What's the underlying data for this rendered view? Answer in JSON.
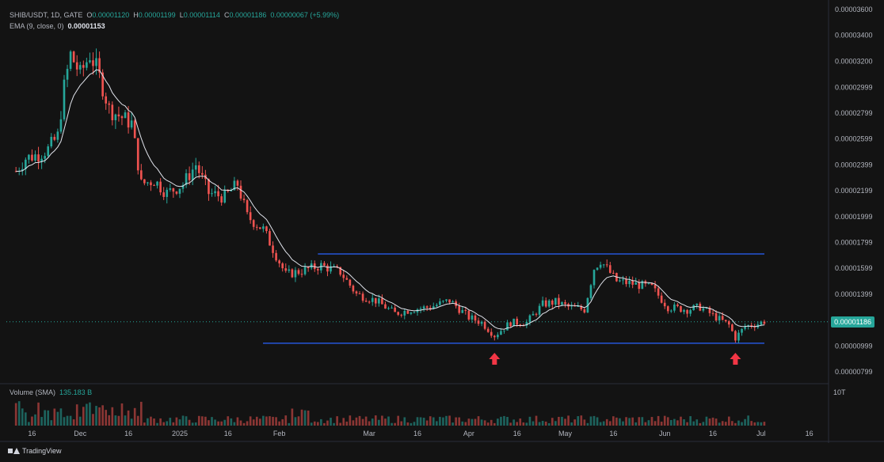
{
  "legend": {
    "symbol": "SHIB/USDT, 1D, GATE",
    "o_label": "O",
    "o_val": "0.00001120",
    "h_label": "H",
    "h_val": "0.00001199",
    "l_label": "L",
    "l_val": "0.00001114",
    "c_label": "C",
    "c_val": "0.00001186",
    "change": "0.00000067 (+5.99%)",
    "ema_label": "EMA (9, close, 0)",
    "ema_val": "0.00001153"
  },
  "volume": {
    "label": "Volume (SMA)",
    "value": "135.183 B",
    "axis_label": "10T"
  },
  "last_price_tag": "0.00001186",
  "footer": {
    "brand": "TradingView"
  },
  "colors": {
    "up": "#26a69a",
    "down": "#ef5350",
    "ema": "#e0e3eb",
    "channel": "#2962ff",
    "arrow": "#f23645",
    "last_line": "#26a69a"
  },
  "chart_data": {
    "type": "candlestick",
    "x_tick_labels": [
      "16",
      "Dec",
      "16",
      "2025",
      "16",
      "Feb",
      "Mar",
      "16",
      "Apr",
      "16",
      "May",
      "16",
      "Jun",
      "16",
      "Jul",
      "16"
    ],
    "y_tick_labels": [
      "0.00003600",
      "0.00003400",
      "0.00003200",
      "0.00002999",
      "0.00002799",
      "0.00002599",
      "0.00002399",
      "0.00002199",
      "0.00001999",
      "0.00001799",
      "0.00001599",
      "0.00001399",
      "0.00001199",
      "0.00000999",
      "0.00000799"
    ],
    "ylim": [
      7.5e-06,
      3.6e-05
    ],
    "channel": {
      "upper": 1.71e-05,
      "lower": 1.02e-05,
      "start_date": "2025-02-11",
      "end_date": "2025-07-12"
    },
    "markers": [
      {
        "type": "up-arrow",
        "date": "2025-04-09"
      },
      {
        "type": "up-arrow",
        "date": "2025-06-23"
      }
    ],
    "ema_series_name": "EMA (9, close, 0)",
    "closes": [
      [
        "2024-11-11",
        2.35e-05
      ],
      [
        "2024-11-14",
        2.45e-05
      ],
      [
        "2024-11-18",
        2.48e-05
      ],
      [
        "2024-11-21",
        2.52e-05
      ],
      [
        "2024-11-24",
        2.62e-05
      ],
      [
        "2024-11-26",
        3e-05
      ],
      [
        "2024-11-28",
        3.25e-05
      ],
      [
        "2024-12-01",
        3.1e-05
      ],
      [
        "2024-12-04",
        3.25e-05
      ],
      [
        "2024-12-06",
        3.15e-05
      ],
      [
        "2024-12-08",
        3e-05
      ],
      [
        "2024-12-10",
        2.83e-05
      ],
      [
        "2024-12-13",
        2.78e-05
      ],
      [
        "2024-12-17",
        2.72e-05
      ],
      [
        "2024-12-20",
        2.25e-05
      ],
      [
        "2024-12-24",
        2.28e-05
      ],
      [
        "2024-12-28",
        2.18e-05
      ],
      [
        "2025-01-02",
        2.25e-05
      ],
      [
        "2025-01-06",
        2.4e-05
      ],
      [
        "2025-01-10",
        2.18e-05
      ],
      [
        "2025-01-15",
        2.15e-05
      ],
      [
        "2025-01-19",
        2.25e-05
      ],
      [
        "2025-01-22",
        2e-05
      ],
      [
        "2025-01-27",
        1.9e-05
      ],
      [
        "2025-02-01",
        1.65e-05
      ],
      [
        "2025-02-03",
        1.55e-05
      ],
      [
        "2025-02-08",
        1.58e-05
      ],
      [
        "2025-02-14",
        1.62e-05
      ],
      [
        "2025-02-20",
        1.57e-05
      ],
      [
        "2025-02-25",
        1.4e-05
      ],
      [
        "2025-03-03",
        1.35e-05
      ],
      [
        "2025-03-09",
        1.25e-05
      ],
      [
        "2025-03-14",
        1.28e-05
      ],
      [
        "2025-03-20",
        1.3e-05
      ],
      [
        "2025-03-26",
        1.35e-05
      ],
      [
        "2025-04-01",
        1.22e-05
      ],
      [
        "2025-04-05",
        1.18e-05
      ],
      [
        "2025-04-09",
        1.08e-05
      ],
      [
        "2025-04-14",
        1.18e-05
      ],
      [
        "2025-04-19",
        1.18e-05
      ],
      [
        "2025-04-24",
        1.32e-05
      ],
      [
        "2025-04-28",
        1.34e-05
      ],
      [
        "2025-05-02",
        1.3e-05
      ],
      [
        "2025-05-07",
        1.28e-05
      ],
      [
        "2025-05-10",
        1.6e-05
      ],
      [
        "2025-05-12",
        1.66e-05
      ],
      [
        "2025-05-17",
        1.5e-05
      ],
      [
        "2025-05-22",
        1.48e-05
      ],
      [
        "2025-05-28",
        1.45e-05
      ],
      [
        "2025-06-02",
        1.3e-05
      ],
      [
        "2025-06-08",
        1.28e-05
      ],
      [
        "2025-06-12",
        1.3e-05
      ],
      [
        "2025-06-17",
        1.22e-05
      ],
      [
        "2025-06-21",
        1.16e-05
      ],
      [
        "2025-06-23",
        1.06e-05
      ],
      [
        "2025-06-26",
        1.15e-05
      ],
      [
        "2025-06-30",
        1.17e-05
      ],
      [
        "2025-07-02",
        1.19e-05
      ]
    ]
  }
}
